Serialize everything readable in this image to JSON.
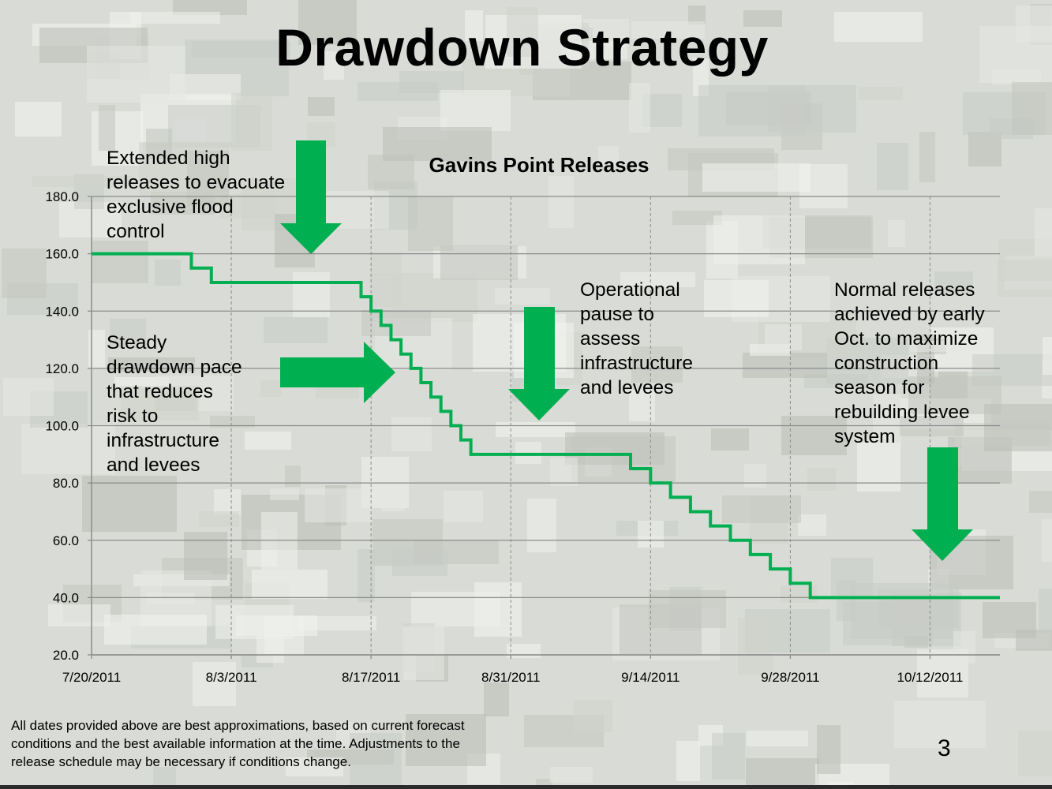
{
  "title": "Drawdown Strategy",
  "annotations": {
    "extended": [
      "Extended high",
      "releases to evacuate",
      "exclusive flood",
      "control"
    ],
    "steady": [
      "Steady",
      "drawdown pace",
      "that reduces",
      "risk to",
      "infrastructure",
      "and levees"
    ],
    "operational": [
      "Operational",
      "pause to",
      "assess",
      "infrastructure",
      "and levees"
    ],
    "normal": [
      "Normal releases",
      "achieved by early",
      "Oct. to maximize",
      "construction",
      "season for",
      "rebuilding levee",
      "system"
    ]
  },
  "footnote": [
    "All dates provided above are best approximations, based on current forecast",
    "conditions and the best available information at the time. Adjustments to the",
    "release schedule may be necessary if conditions change."
  ],
  "page_number": "3",
  "colors": {
    "series": "#00b050",
    "arrow": "#00b050",
    "grid": "#8c8c8c"
  },
  "icons": [
    "arrow-down-icon",
    "arrow-right-icon",
    "arrow-down-icon",
    "arrow-down-icon"
  ],
  "chart_data": {
    "type": "line",
    "title": "Gavins Point Releases",
    "xlabel": "",
    "ylabel": "",
    "x_start": "7/20/2011",
    "x_end": "10/19/2011",
    "ylim": [
      20,
      180
    ],
    "y_ticks": [
      "20.0",
      "40.0",
      "60.0",
      "80.0",
      "100.0",
      "120.0",
      "140.0",
      "160.0",
      "180.0"
    ],
    "x_ticks": [
      "7/20/2011",
      "8/3/2011",
      "8/17/2011",
      "8/31/2011",
      "9/14/2011",
      "9/28/2011",
      "10/12/2011"
    ],
    "grid": {
      "horizontal": "solid",
      "vertical": "dashed"
    },
    "legend": "none",
    "step": true,
    "series": [
      {
        "x": [
          "7/20/2011",
          "7/30/2011",
          "8/1/2011",
          "8/16/2011",
          "8/17/2011",
          "8/18/2011",
          "8/19/2011",
          "8/20/2011",
          "8/21/2011",
          "8/22/2011",
          "8/23/2011",
          "8/24/2011",
          "8/25/2011",
          "8/26/2011",
          "8/27/2011",
          "9/12/2011",
          "9/14/2011",
          "9/16/2011",
          "9/18/2011",
          "9/20/2011",
          "9/22/2011",
          "9/24/2011",
          "9/26/2011",
          "9/28/2011",
          "9/30/2011",
          "10/19/2011"
        ],
        "y": [
          160,
          155,
          150,
          145,
          140,
          135,
          130,
          125,
          120,
          115,
          110,
          105,
          100,
          95,
          90,
          85,
          80,
          75,
          70,
          65,
          60,
          55,
          50,
          45,
          40,
          40
        ]
      }
    ]
  }
}
